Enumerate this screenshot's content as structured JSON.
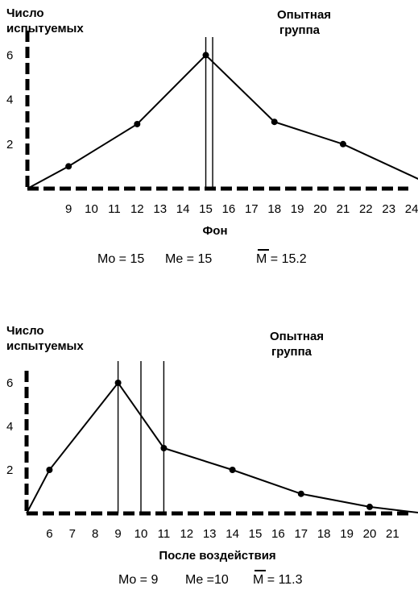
{
  "chart_data": [
    {
      "type": "line",
      "ylabel": "Число испытуемых",
      "group_label": "Опытная группа",
      "xlabel": "Фон",
      "x_ticks": [
        "9",
        "10",
        "11",
        "12",
        "13",
        "14",
        "15",
        "16",
        "17",
        "18",
        "19",
        "20",
        "21",
        "22",
        "23",
        "24"
      ],
      "y_ticks": [
        "2",
        "4",
        "6"
      ],
      "xlim": [
        7.2,
        25.2
      ],
      "ylim": [
        0,
        7
      ],
      "points": [
        [
          7.2,
          0
        ],
        [
          9,
          1
        ],
        [
          12,
          2.9
        ],
        [
          15,
          6
        ],
        [
          18,
          3
        ],
        [
          21,
          2
        ],
        [
          25.2,
          0
        ]
      ],
      "vlines": [
        15,
        15.3
      ],
      "stats": {
        "mo": "Mo = 15",
        "me": "Me = 15",
        "mean": "M = 15.2"
      },
      "grid": false
    },
    {
      "type": "line",
      "ylabel": "Число испытуемых",
      "group_label": "Опытная группа",
      "xlabel": "После воздействия",
      "x_ticks": [
        "6",
        "7",
        "8",
        "9",
        "10",
        "11",
        "12",
        "13",
        "14",
        "15",
        "16",
        "17",
        "18",
        "19",
        "20",
        "21"
      ],
      "y_ticks": [
        "2",
        "4",
        "6"
      ],
      "xlim": [
        5,
        22.4
      ],
      "ylim": [
        0,
        7
      ],
      "points": [
        [
          5,
          0
        ],
        [
          6,
          2
        ],
        [
          9,
          6
        ],
        [
          11,
          3
        ],
        [
          14,
          2
        ],
        [
          17,
          0.9
        ],
        [
          20,
          0.3
        ],
        [
          22.4,
          0
        ]
      ],
      "vlines": [
        9,
        10,
        11
      ],
      "stats": {
        "mo": "Mo = 9",
        "me": "Me =10",
        "mean": "M = 11.3"
      },
      "grid": false
    }
  ]
}
